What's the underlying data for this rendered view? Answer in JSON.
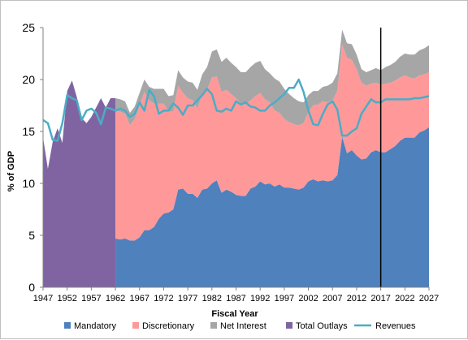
{
  "chart_data": {
    "type": "area",
    "title": "",
    "xlabel": "Fiscal Year",
    "ylabel": "% of GDP",
    "xlim": [
      1947,
      2027
    ],
    "ylim": [
      0,
      25
    ],
    "yticks": [
      0,
      5,
      10,
      15,
      20,
      25
    ],
    "xticks": [
      1947,
      1952,
      1957,
      1962,
      1967,
      1972,
      1977,
      1982,
      1987,
      1992,
      1997,
      2002,
      2007,
      2012,
      2017,
      2022,
      2027
    ],
    "grid": false,
    "legend_position": "bottom",
    "projection_line_year": 2017,
    "colors": {
      "mandatory": "#4f81bd",
      "discretionary": "#ff9999",
      "net_interest": "#a6a6a6",
      "total_outlays": "#8064a2",
      "revenues": "#4bacc6",
      "projection_line": "#000000"
    },
    "total_outlays": {
      "name": "Total Outlays",
      "x": [
        1947,
        1948,
        1949,
        1950,
        1951,
        1952,
        1953,
        1954,
        1955,
        1956,
        1957,
        1958,
        1959,
        1960,
        1961,
        1962
      ],
      "values": [
        14.4,
        11.4,
        14.0,
        15.3,
        13.9,
        18.9,
        19.9,
        18.3,
        16.3,
        15.8,
        16.4,
        17.3,
        18.2,
        17.3,
        18.2,
        18.2
      ]
    },
    "series": [
      {
        "name": "Mandatory",
        "x": [
          1962,
          1963,
          1964,
          1965,
          1966,
          1967,
          1968,
          1969,
          1970,
          1971,
          1972,
          1973,
          1974,
          1975,
          1976,
          1977,
          1978,
          1979,
          1980,
          1981,
          1982,
          1983,
          1984,
          1985,
          1986,
          1987,
          1988,
          1989,
          1990,
          1991,
          1992,
          1993,
          1994,
          1995,
          1996,
          1997,
          1998,
          1999,
          2000,
          2001,
          2002,
          2003,
          2004,
          2005,
          2006,
          2007,
          2008,
          2009,
          2010,
          2011,
          2012,
          2013,
          2014,
          2015,
          2016,
          2017,
          2018,
          2019,
          2020,
          2021,
          2022,
          2023,
          2024,
          2025,
          2026,
          2027
        ],
        "values": [
          4.7,
          4.6,
          4.7,
          4.5,
          4.5,
          4.8,
          5.5,
          5.5,
          5.8,
          6.6,
          7.1,
          7.2,
          7.5,
          9.4,
          9.5,
          9.0,
          9.0,
          8.6,
          9.4,
          9.5,
          10.0,
          10.3,
          9.1,
          9.4,
          9.2,
          8.9,
          8.8,
          8.8,
          9.5,
          9.7,
          10.2,
          9.9,
          10.0,
          9.7,
          9.9,
          9.6,
          9.6,
          9.5,
          9.4,
          9.6,
          10.2,
          10.4,
          10.2,
          10.3,
          10.2,
          10.3,
          10.8,
          14.5,
          12.9,
          13.2,
          12.7,
          12.3,
          12.4,
          13.0,
          13.2,
          13.0,
          13.0,
          13.3,
          13.6,
          14.1,
          14.4,
          14.4,
          14.4,
          14.9,
          15.1,
          15.4
        ]
      },
      {
        "name": "Discretionary",
        "x": [
          1962,
          1963,
          1964,
          1965,
          1966,
          1967,
          1968,
          1969,
          1970,
          1971,
          1972,
          1973,
          1974,
          1975,
          1976,
          1977,
          1978,
          1979,
          1980,
          1981,
          1982,
          1983,
          1984,
          1985,
          1986,
          1987,
          1988,
          1989,
          1990,
          1991,
          1992,
          1993,
          1994,
          1995,
          1996,
          1997,
          1998,
          1999,
          2000,
          2001,
          2002,
          2003,
          2004,
          2005,
          2006,
          2007,
          2008,
          2009,
          2010,
          2011,
          2012,
          2013,
          2014,
          2015,
          2016,
          2017,
          2018,
          2019,
          2020,
          2021,
          2022,
          2023,
          2024,
          2025,
          2026,
          2027
        ],
        "values": [
          12.3,
          12.3,
          12.0,
          11.1,
          11.7,
          12.7,
          13.3,
          12.5,
          11.9,
          11.1,
          10.6,
          9.7,
          9.4,
          10.0,
          9.2,
          9.2,
          9.0,
          8.6,
          9.2,
          9.5,
          10.2,
          10.0,
          9.7,
          9.6,
          9.4,
          9.3,
          8.9,
          8.8,
          8.5,
          8.7,
          8.5,
          8.2,
          7.8,
          7.3,
          6.9,
          6.6,
          6.3,
          6.2,
          6.2,
          6.2,
          6.7,
          7.1,
          7.4,
          7.6,
          7.6,
          7.7,
          8.1,
          8.9,
          9.2,
          8.7,
          8.3,
          7.4,
          7.0,
          6.6,
          6.5,
          6.5,
          6.6,
          6.4,
          6.3,
          6.1,
          6.0,
          5.8,
          5.7,
          5.5,
          5.4,
          5.3
        ]
      },
      {
        "name": "Net Interest",
        "x": [
          1962,
          1963,
          1964,
          1965,
          1966,
          1967,
          1968,
          1969,
          1970,
          1971,
          1972,
          1973,
          1974,
          1975,
          1976,
          1977,
          1978,
          1979,
          1980,
          1981,
          1982,
          1983,
          1984,
          1985,
          1986,
          1987,
          1988,
          1989,
          1990,
          1991,
          1992,
          1993,
          1994,
          1995,
          1996,
          1997,
          1998,
          1999,
          2000,
          2001,
          2002,
          2003,
          2004,
          2005,
          2006,
          2007,
          2008,
          2009,
          2010,
          2011,
          2012,
          2013,
          2014,
          2015,
          2016,
          2017,
          2018,
          2019,
          2020,
          2021,
          2022,
          2023,
          2024,
          2025,
          2026,
          2027
        ],
        "values": [
          1.2,
          1.2,
          1.2,
          1.2,
          1.2,
          1.2,
          1.2,
          1.3,
          1.4,
          1.4,
          1.4,
          1.5,
          1.6,
          1.5,
          1.5,
          1.6,
          1.7,
          1.8,
          1.9,
          2.2,
          2.5,
          2.6,
          2.9,
          3.1,
          3.0,
          3.0,
          3.0,
          3.1,
          3.2,
          3.2,
          3.1,
          2.9,
          2.8,
          3.1,
          3.0,
          2.9,
          2.7,
          2.5,
          2.3,
          2.0,
          1.6,
          1.4,
          1.3,
          1.4,
          1.6,
          1.7,
          1.7,
          1.4,
          1.4,
          1.5,
          1.4,
          1.3,
          1.3,
          1.3,
          1.4,
          1.4,
          1.6,
          1.7,
          1.8,
          2.0,
          2.1,
          2.2,
          2.3,
          2.4,
          2.5,
          2.6
        ]
      }
    ],
    "revenues": {
      "name": "Revenues",
      "x": [
        1947,
        1948,
        1949,
        1950,
        1951,
        1952,
        1953,
        1954,
        1955,
        1956,
        1957,
        1958,
        1959,
        1960,
        1961,
        1962,
        1963,
        1964,
        1965,
        1966,
        1967,
        1968,
        1969,
        1970,
        1971,
        1972,
        1973,
        1974,
        1975,
        1976,
        1977,
        1978,
        1979,
        1980,
        1981,
        1982,
        1983,
        1984,
        1985,
        1986,
        1987,
        1988,
        1989,
        1990,
        1991,
        1992,
        1993,
        1994,
        1995,
        1996,
        1997,
        1998,
        1999,
        2000,
        2001,
        2002,
        2003,
        2004,
        2005,
        2006,
        2007,
        2008,
        2009,
        2010,
        2011,
        2012,
        2013,
        2014,
        2015,
        2016,
        2017,
        2018,
        2019,
        2020,
        2021,
        2022,
        2023,
        2024,
        2025,
        2026,
        2027
      ],
      "values": [
        16.1,
        15.8,
        14.2,
        14.1,
        15.8,
        18.5,
        18.2,
        18.0,
        16.1,
        17.0,
        17.2,
        16.8,
        15.7,
        17.3,
        17.2,
        17.0,
        17.2,
        17.0,
        16.4,
        16.7,
        17.8,
        17.0,
        19.0,
        18.4,
        16.7,
        17.0,
        17.0,
        17.7,
        17.3,
        16.6,
        17.5,
        17.5,
        18.0,
        18.5,
        19.1,
        18.6,
        17.0,
        16.9,
        17.2,
        17.0,
        17.9,
        17.6,
        17.8,
        17.4,
        17.3,
        17.0,
        17.0,
        17.5,
        17.8,
        18.2,
        18.6,
        19.2,
        19.2,
        20.0,
        18.8,
        17.0,
        15.7,
        15.6,
        16.7,
        17.6,
        17.9,
        17.1,
        14.6,
        14.6,
        15.0,
        15.3,
        16.7,
        17.4,
        18.1,
        17.8,
        17.8,
        18.1,
        18.1,
        18.1,
        18.1,
        18.1,
        18.1,
        18.2,
        18.2,
        18.3,
        18.4
      ]
    },
    "legend": [
      "Mandatory",
      "Discretionary",
      "Net Interest",
      "Total Outlays",
      "Revenues"
    ]
  }
}
